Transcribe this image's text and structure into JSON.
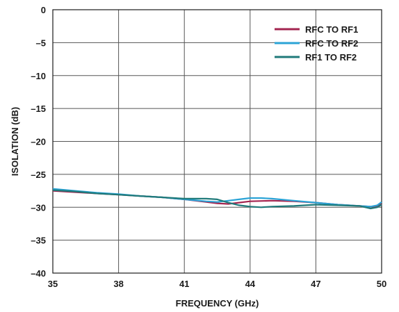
{
  "chart_data": {
    "type": "line",
    "xlabel": "FREQUENCY (GHz)",
    "ylabel": "ISOLATION (dB)",
    "xlim": [
      35,
      50
    ],
    "ylim": [
      -40,
      0
    ],
    "x_ticks": [
      35,
      38,
      41,
      44,
      47,
      50
    ],
    "y_ticks": [
      0,
      -5,
      -10,
      -15,
      -20,
      -25,
      -30,
      -35,
      -40
    ],
    "x_tick_labels": [
      "35",
      "38",
      "41",
      "44",
      "47",
      "50"
    ],
    "y_tick_labels": [
      "0",
      "–5",
      "–10",
      "–15",
      "–20",
      "–25",
      "–30",
      "–35",
      "–40"
    ],
    "grid": true,
    "legend_position": "top-right",
    "series": [
      {
        "name": "RFC TO RF1",
        "color": "#a3244f",
        "points": [
          [
            35,
            -27.5
          ],
          [
            36,
            -27.7
          ],
          [
            37,
            -27.9
          ],
          [
            38,
            -28.1
          ],
          [
            39,
            -28.3
          ],
          [
            40,
            -28.5
          ],
          [
            41,
            -28.8
          ],
          [
            42,
            -29.2
          ],
          [
            42.5,
            -29.4
          ],
          [
            43,
            -29.5
          ],
          [
            43.5,
            -29.3
          ],
          [
            44,
            -29.1
          ],
          [
            45,
            -29.0
          ],
          [
            46,
            -29.1
          ],
          [
            47,
            -29.3
          ],
          [
            48,
            -29.6
          ],
          [
            49,
            -29.8
          ],
          [
            49.5,
            -29.9
          ],
          [
            49.8,
            -29.8
          ],
          [
            50,
            -29.5
          ]
        ]
      },
      {
        "name": "RFC TO RF2",
        "color": "#2aa3d6",
        "points": [
          [
            35,
            -27.2
          ],
          [
            36,
            -27.5
          ],
          [
            37,
            -27.8
          ],
          [
            38,
            -28.0
          ],
          [
            39,
            -28.3
          ],
          [
            40,
            -28.5
          ],
          [
            41,
            -28.8
          ],
          [
            42,
            -29.1
          ],
          [
            42.5,
            -29.2
          ],
          [
            43,
            -29.0
          ],
          [
            43.5,
            -28.8
          ],
          [
            44,
            -28.6
          ],
          [
            44.5,
            -28.6
          ],
          [
            45,
            -28.7
          ],
          [
            46,
            -29.0
          ],
          [
            47,
            -29.3
          ],
          [
            48,
            -29.6
          ],
          [
            49,
            -29.8
          ],
          [
            49.5,
            -29.9
          ],
          [
            49.8,
            -29.7
          ],
          [
            50,
            -29.2
          ]
        ]
      },
      {
        "name": "RF1 TO RF2",
        "color": "#1f7a7a",
        "points": [
          [
            35,
            -27.4
          ],
          [
            36,
            -27.6
          ],
          [
            37,
            -27.9
          ],
          [
            38,
            -28.1
          ],
          [
            39,
            -28.3
          ],
          [
            40,
            -28.5
          ],
          [
            41,
            -28.7
          ],
          [
            42,
            -28.7
          ],
          [
            42.5,
            -28.8
          ],
          [
            43,
            -29.3
          ],
          [
            43.5,
            -29.7
          ],
          [
            44,
            -29.9
          ],
          [
            44.5,
            -30.0
          ],
          [
            45,
            -29.9
          ],
          [
            46,
            -29.8
          ],
          [
            47,
            -29.6
          ],
          [
            48,
            -29.7
          ],
          [
            49,
            -29.8
          ],
          [
            49.5,
            -30.2
          ],
          [
            49.8,
            -30.0
          ],
          [
            50,
            -29.6
          ]
        ]
      }
    ]
  }
}
